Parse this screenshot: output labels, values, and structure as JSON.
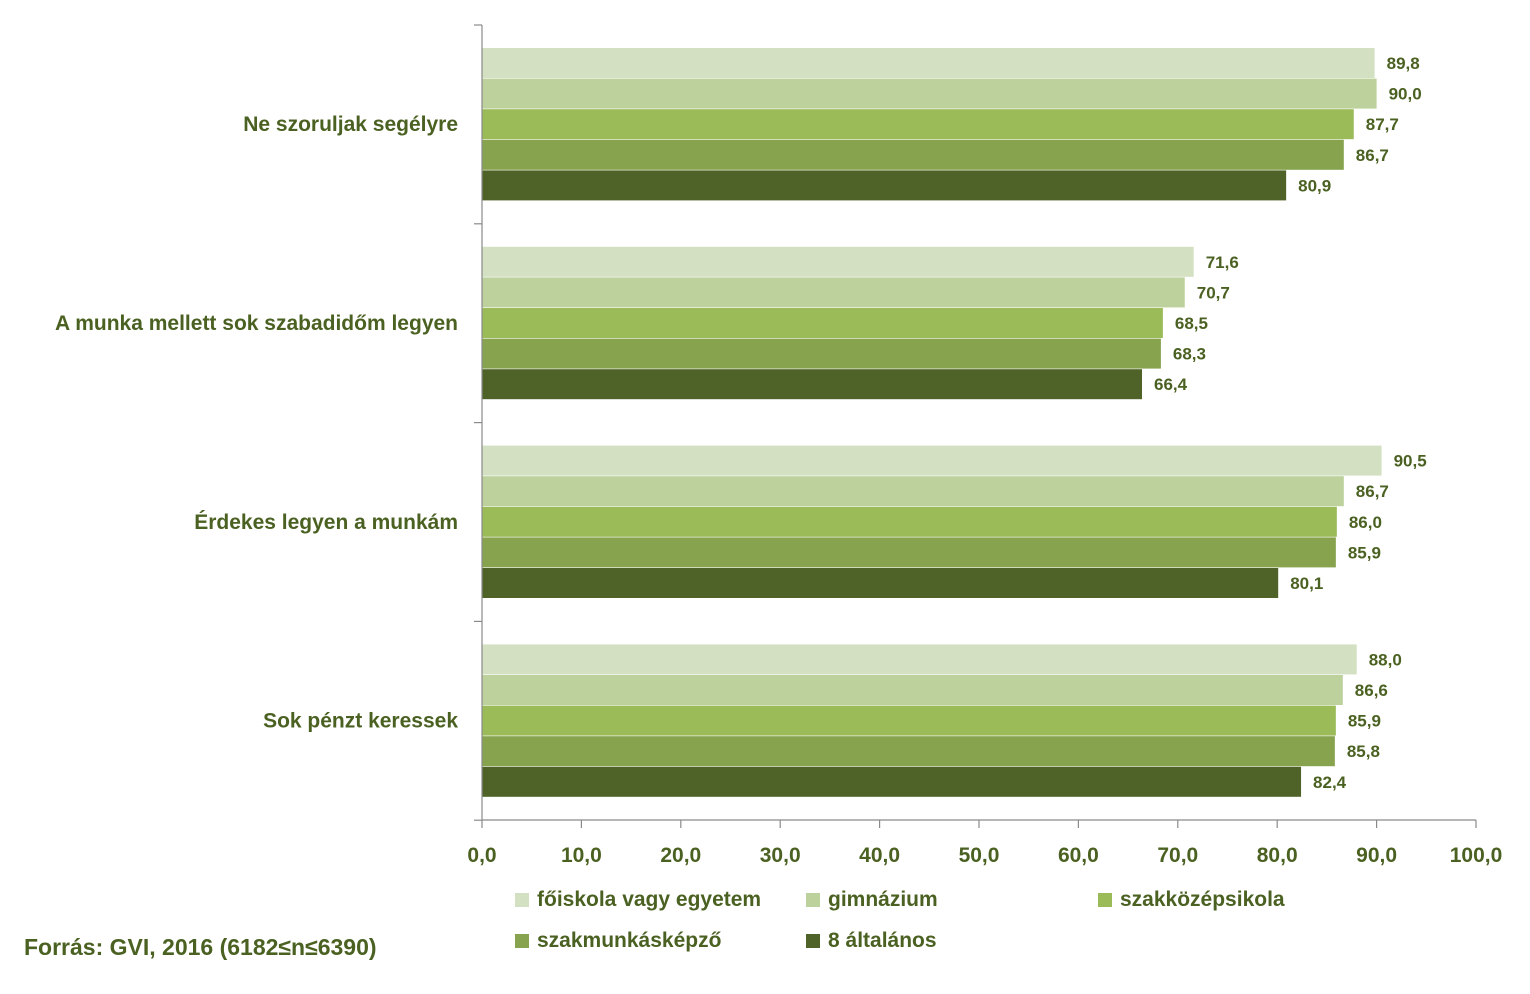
{
  "chart_data": {
    "type": "bar",
    "orientation": "horizontal",
    "categories": [
      "Ne szoruljak segélyre",
      "A munka mellett sok szabadidőm legyen",
      "Érdekes legyen a munkám",
      "Sok pénzt keressek"
    ],
    "series": [
      {
        "name": "főiskola vagy egyetem",
        "color": "#d3e0c2",
        "values": [
          89.8,
          71.6,
          90.5,
          88.0
        ],
        "labels": [
          "89,8",
          "71,6",
          "90,5",
          "88,0"
        ]
      },
      {
        "name": "gimnázium",
        "color": "#bcd19b",
        "values": [
          90.0,
          70.7,
          86.7,
          86.6
        ],
        "labels": [
          "90,0",
          "70,7",
          "86,7",
          "86,6"
        ]
      },
      {
        "name": "szakközépsikola",
        "color": "#9bbb59",
        "values": [
          87.7,
          68.5,
          86.0,
          85.9
        ],
        "labels": [
          "87,7",
          "68,5",
          "86,0",
          "85,9"
        ]
      },
      {
        "name": "szakmunkásképző",
        "color": "#87a34e",
        "values": [
          86.7,
          68.3,
          85.9,
          85.8
        ],
        "labels": [
          "86,7",
          "68,3",
          "85,9",
          "85,8"
        ]
      },
      {
        "name": "8 általános",
        "color": "#4f6228",
        "values": [
          80.9,
          66.4,
          80.1,
          82.4
        ],
        "labels": [
          "80,9",
          "66,4",
          "80,1",
          "82,4"
        ]
      }
    ],
    "xlim": [
      0,
      100
    ],
    "xticks": [
      0,
      10,
      20,
      30,
      40,
      50,
      60,
      70,
      80,
      90,
      100
    ],
    "xtick_labels": [
      "0,0",
      "10,0",
      "20,0",
      "30,0",
      "40,0",
      "50,0",
      "60,0",
      "70,0",
      "80,0",
      "90,0",
      "100,0"
    ],
    "legend_position": "bottom",
    "grid": false
  },
  "source": "Forrás: GVI, 2016 (6182≤n≤6390)"
}
